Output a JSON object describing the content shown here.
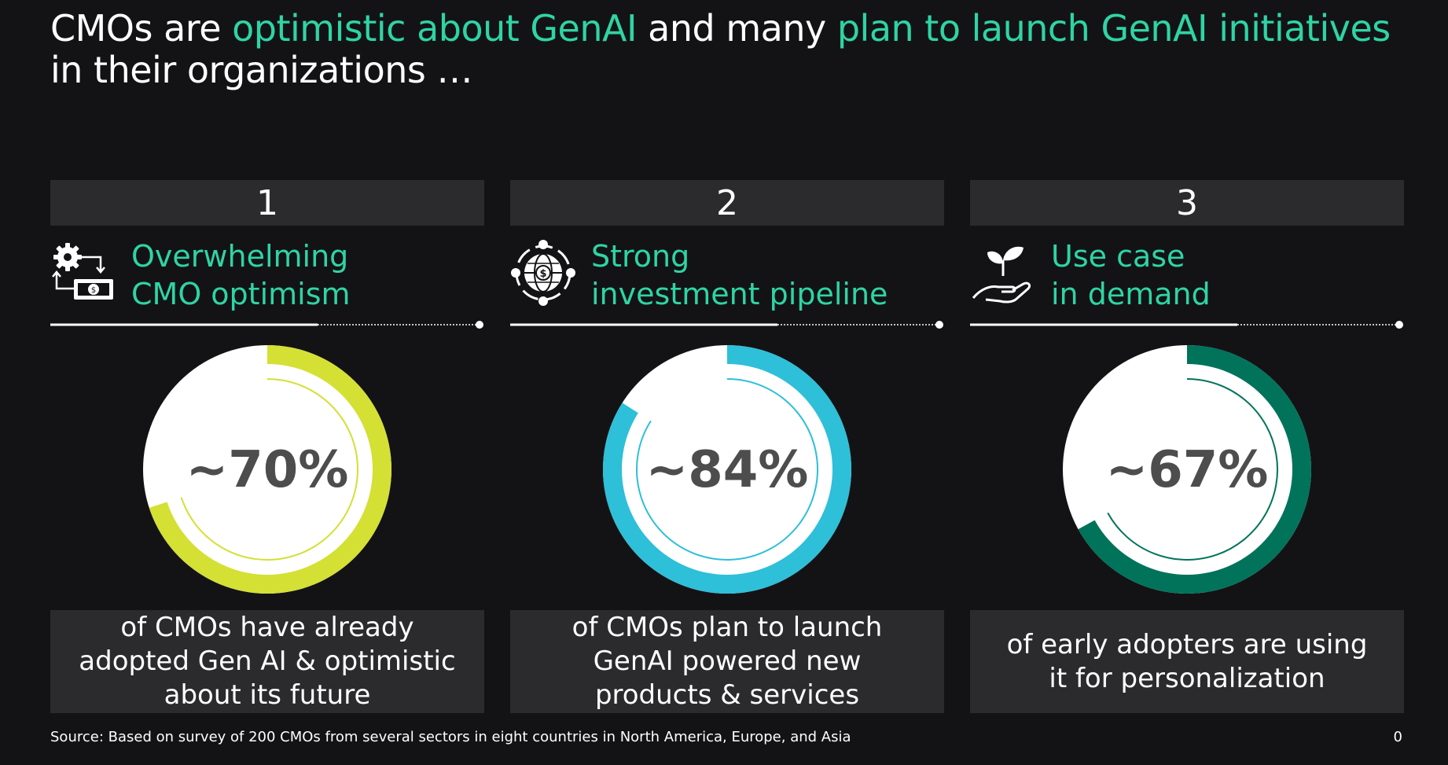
{
  "title": {
    "part1": "CMOs are ",
    "highlight1": "optimistic about GenAI",
    "part2": " and many ",
    "highlight2": "plan to launch GenAI initiatives",
    "part3": " in their organizations …"
  },
  "columns": [
    {
      "number": "1",
      "icon": "gear-money-icon",
      "heading_line1": "Overwhelming",
      "heading_line2": "CMO optimism",
      "percent_label": "~70%",
      "percent": 70,
      "color": "#d4e034",
      "description": "of CMOs have already adopted Gen AI & optimistic about its future"
    },
    {
      "number": "2",
      "icon": "global-investment-icon",
      "heading_line1": "Strong",
      "heading_line2": "investment pipeline",
      "percent_label": "~84%",
      "percent": 84,
      "color": "#2ebfd9",
      "description": "of CMOs plan to launch GenAI powered new products & services"
    },
    {
      "number": "3",
      "icon": "hand-sprout-icon",
      "heading_line1": "Use case",
      "heading_line2": "in demand",
      "percent_label": "~67%",
      "percent": 67,
      "color": "#00735a",
      "description": "of early adopters are using it for personalization"
    }
  ],
  "source": "Source: Based on survey of 200 CMOs from several sectors in eight countries in North America, Europe, and Asia",
  "page_number": "0",
  "colors": {
    "background": "#131316",
    "accent": "#2fd4a4",
    "panel": "#2b2b2d"
  }
}
